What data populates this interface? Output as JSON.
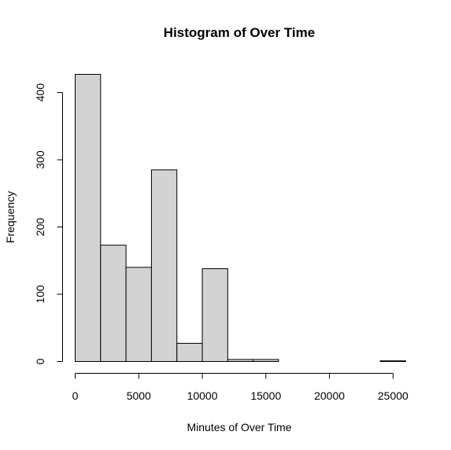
{
  "chart_data": {
    "type": "bar",
    "title": "Histogram of Over Time",
    "xlabel": "Minutes of Over Time",
    "ylabel": "Frequency",
    "bin_edges": [
      0,
      2000,
      4000,
      6000,
      8000,
      10000,
      12000,
      14000,
      16000,
      18000,
      20000,
      22000,
      24000,
      26000
    ],
    "values": [
      427,
      173,
      140,
      285,
      27,
      138,
      3,
      3,
      0,
      0,
      0,
      0,
      1
    ],
    "xlim": [
      0,
      26000
    ],
    "ylim": [
      0,
      427
    ],
    "x_ticks": [
      0,
      5000,
      10000,
      15000,
      20000,
      25000
    ],
    "x_tick_labels": [
      "0",
      "5000",
      "10000",
      "15000",
      "20000",
      "25000"
    ],
    "y_ticks": [
      0,
      100,
      200,
      300,
      400
    ],
    "y_tick_labels": [
      "0",
      "100",
      "200",
      "300",
      "400"
    ],
    "bar_color": "#d3d3d3",
    "grid": false,
    "legend": "none"
  }
}
